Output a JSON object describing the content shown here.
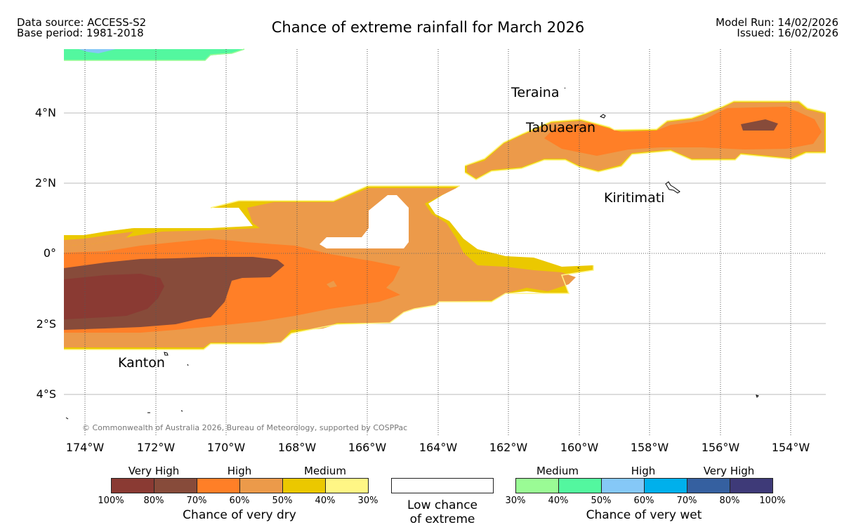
{
  "header": {
    "data_source": "Data source: ACCESS-S2",
    "base_period": "Base period: 1981-2018",
    "title": "Chance of extreme rainfall for March 2026",
    "model_run": "Model Run: 14/02/2026",
    "issued": "Issued: 16/02/2026"
  },
  "map": {
    "lat_labels": [
      "4°N",
      "2°N",
      "0°",
      "2°S",
      "4°S"
    ],
    "lon_labels": [
      "174°W",
      "172°W",
      "170°W",
      "168°W",
      "166°W",
      "164°W",
      "162°W",
      "160°W",
      "158°W",
      "156°W",
      "154°W"
    ],
    "places": [
      "Teraina",
      "Tabuaeran",
      "Kiritimati",
      "Kanton"
    ],
    "copyright": "© Commonwealth of Australia 2026, Bureau of Meteorology, supported by COSPPac"
  },
  "legend": {
    "dry": {
      "groups": [
        "Very High",
        "High",
        "Medium"
      ],
      "colors": [
        "#8a3a33",
        "#874b3a",
        "#ff7f27",
        "#ec9a4a",
        "#ebc800",
        "#fff685"
      ],
      "ticks": [
        "100%",
        "80%",
        "70%",
        "60%",
        "50%",
        "40%",
        "30%"
      ],
      "caption": "Chance of very dry"
    },
    "low": {
      "line1": "Low chance",
      "line2": "of extreme"
    },
    "wet": {
      "groups": [
        "Medium",
        "High",
        "Very High"
      ],
      "colors": [
        "#9afb95",
        "#53f79f",
        "#85c8f7",
        "#00b0ec",
        "#3560a0",
        "#3e3a78"
      ],
      "ticks": [
        "30%",
        "40%",
        "50%",
        "60%",
        "70%",
        "80%",
        "100%"
      ],
      "caption": "Chance of very wet"
    }
  }
}
